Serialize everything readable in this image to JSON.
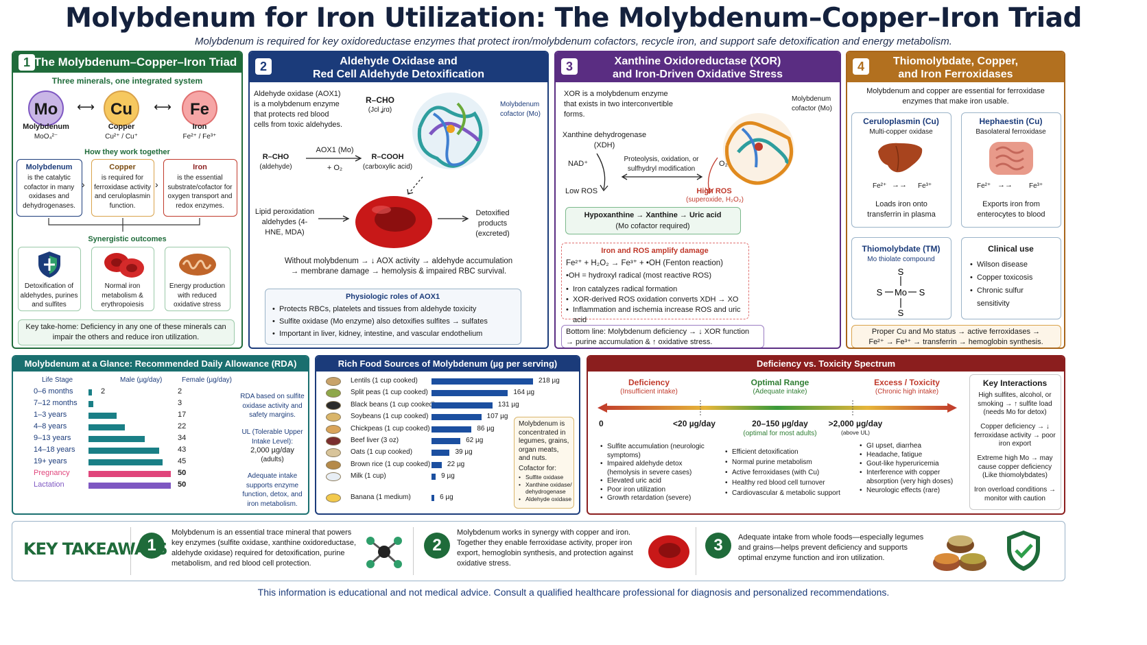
{
  "header": {
    "title": "Molybdenum for Iron Utilization: The Molybdenum–Copper–Iron Triad",
    "subtitle": "Molybdenum is required for key oxidoreductase enzymes that protect iron/molybdenum cofactors, recycle iron, and support safe detoxification and energy metabolism."
  },
  "panel1": {
    "number": "1",
    "title": "The Molybdenum–Copper–Iron Triad",
    "subtitle": "Three minerals, one integrated system",
    "elements": [
      {
        "symbol": "Mo",
        "name": "Molybdenum",
        "forms": "MoO₄²⁻",
        "color": "#c9b6e6"
      },
      {
        "symbol": "Cu",
        "name": "Copper",
        "forms": "Cu²⁺ / Cu⁺",
        "color": "#f6c85f"
      },
      {
        "symbol": "Fe",
        "name": "Iron",
        "forms": "Fe²⁺ / Fe³⁺",
        "color": "#f6a6a6"
      }
    ],
    "how_title": "How they work together",
    "roles": [
      {
        "title": "Molybdenum",
        "text": "is the catalytic cofactor in many oxidases and dehydrogenases."
      },
      {
        "title": "Copper",
        "text": "is required for ferroxidase activity and ceruloplasmin function."
      },
      {
        "title": "Iron",
        "text": "is the essential substrate/cofactor for oxygen transport and redox enzymes."
      }
    ],
    "outcomes_title": "Synergistic outcomes",
    "outcomes": [
      "Detoxification of aldehydes, purines and sulfites",
      "Normal iron metabolism & erythropoiesis",
      "Energy production with reduced oxidative stress"
    ],
    "takehome": "Key take-home: Deficiency in any one of these minerals can impair the others and reduce iron utilization."
  },
  "panel2": {
    "number": "2",
    "title_line1": "Aldehyde Oxidase and",
    "title_line2": "Red Cell Aldehyde Detoxification",
    "intro": "Aldehyde oxidase (AOX1) is a molybdenum enzyme that protects red blood cells from toxic aldehydes.",
    "rcho_top": "R–CHO",
    "rcho_top_sub": "(Jcł ʝɾɑ)",
    "cofactor": "Molybdenum cofactor (Mo)",
    "reaction_left": "R–CHO",
    "reaction_left_sub": "(aldehyde)",
    "reaction_enzyme": "AOX1 (Mo)",
    "reaction_o2": "+ O₂",
    "reaction_right": "R–COOH",
    "reaction_right_sub": "(carboxylic acid)",
    "lipid": "Lipid peroxidation aldehydes (4-HNE, MDA)",
    "detox": "Detoxified products (excreted)",
    "without_line1": "Without molybdenum → ↓ AOX activity → aldehyde accumulation",
    "without_line2": "→ membrane damage → hemolysis & impaired RBC survival.",
    "roles_title": "Physiologic roles of AOX1",
    "roles": [
      "Protects RBCs, platelets and tissues from aldehyde toxicity",
      "Sulfite oxidase (Mo enzyme) also detoxifies sulfites → sulfates",
      "Important in liver, kidney, intestine, and vascular endothelium"
    ]
  },
  "panel3": {
    "number": "3",
    "title_line1": "Xanthine Oxidoreductase (XOR)",
    "title_line2": "and Iron-Driven Oxidative Stress",
    "intro": "XOR is a molybdenum enzyme that exists in two interconvertible forms.",
    "cofactor": "Molybdenum cofactor (Mo)",
    "xdh": "Xanthine dehydrogenase (XDH)",
    "nad": "NAD⁺",
    "low_ros": "Low ROS",
    "conversion": "Proteolysis, oxidation, or sulfhydryl modification",
    "o2": "O₂",
    "high_ros": "High ROS",
    "high_ros_sub": "(superoxide, H₂O₂)",
    "purine": "Hypoxanthine → Xanthine → Uric acid",
    "purine_sub": "(Mo cofactor required)",
    "damage_title": "Iron and ROS amplify damage",
    "fenton": "Fe²⁺ + H₂O₂ → Fe³⁺ + •OH  (Fenton reaction)",
    "radical": "•OH = hydroxyl radical (most reactive ROS)",
    "damage_points": [
      "Iron catalyzes radical formation",
      "XOR-derived ROS oxidation converts XDH → XO",
      "Inflammation and ischemia increase ROS and uric acid"
    ],
    "bottom_line1": "Bottom line: Molybdenum deficiency → ↓ XOR function",
    "bottom_line2": "→ purine accumulation & ↑ oxidative stress."
  },
  "panel4": {
    "number": "4",
    "title_line1": "Thiomolybdate, Copper,",
    "title_line2": "and Iron Ferroxidases",
    "intro": "Molybdenum and copper are essential for ferroxidase enzymes that make iron usable.",
    "cerulo_title": "Ceruloplasmin (Cu)",
    "cerulo_sub": "Multi-copper oxidase",
    "cerulo_rxn_left": "Fe²⁺",
    "cerulo_rxn_right": "Fe³⁺",
    "cerulo_text": "Loads iron onto transferrin in plasma",
    "heph_title": "Hephaestin (Cu)",
    "heph_sub": "Basolateral ferroxidase",
    "heph_rxn_left": "Fe²⁺",
    "heph_rxn_right": "Fe³⁺",
    "heph_text": "Exports iron from enterocytes to blood",
    "tm_title": "Thiomolybdate (TM)",
    "tm_sub": "Mo thiolate compound",
    "tm_atoms": {
      "s": "S",
      "mo": "Mo"
    },
    "clinical_title": "Clinical use",
    "clinical": [
      "Wilson disease",
      "Copper toxicosis",
      "Chronic sulfur sensitivity"
    ],
    "bottom_line1": "Proper Cu and Mo status → active ferroxidases →",
    "bottom_line2": "Fe²⁺ → Fe³⁺ → transferrin → hemoglobin synthesis."
  },
  "rda": {
    "title": "Molybdenum at a Glance: Recommended Daily Allowance (RDA)",
    "col_stage": "Life Stage",
    "col_male": "Male (µg/day)",
    "col_female": "Female (µg/day)",
    "rows": [
      {
        "stage": "0–6 months",
        "male": 2,
        "female": 2,
        "male_label": "2",
        "color": "#1a7f86"
      },
      {
        "stage": "7–12 months",
        "male": 3,
        "female": 3,
        "male_label": "",
        "color": "#1a7f86"
      },
      {
        "stage": "1–3 years",
        "male": 17,
        "female": 17,
        "male_label": "",
        "color": "#1a7f86"
      },
      {
        "stage": "4–8 years",
        "male": 22,
        "female": 22,
        "male_label": "",
        "color": "#1a7f86"
      },
      {
        "stage": "9–13 years",
        "male": 34,
        "female": 34,
        "male_label": "",
        "color": "#1a7f86"
      },
      {
        "stage": "14–18 years",
        "male": 43,
        "female": 43,
        "male_label": "",
        "color": "#1a7f86"
      },
      {
        "stage": "19+ years",
        "male": 45,
        "female": 45,
        "male_label": "",
        "color": "#1a7f86"
      },
      {
        "stage": "Pregnancy",
        "male": 50,
        "female": 50,
        "male_label": "",
        "color": "#e0457b"
      },
      {
        "stage": "Lactation",
        "male": 50,
        "female": 50,
        "male_label": "",
        "color": "#7e57c2"
      }
    ],
    "scale_max": 50,
    "note1": "RDA based on sulfite oxidase activity and safety margins.",
    "note2_title": "UL (Tolerable Upper Intake Level):",
    "note2_value": "2,000 µg/day",
    "note2_sub": "(adults)",
    "note3": "Adequate intake supports enzyme function, detox, and iron metabolism."
  },
  "foods": {
    "title": "Rich Food Sources of Molybdenum (µg per serving)",
    "items": [
      {
        "name": "Lentils (1 cup cooked)",
        "value": 218,
        "label": "218 µg",
        "color": "#c8a26a"
      },
      {
        "name": "Split peas (1 cup cooked)",
        "value": 164,
        "label": "164 µg",
        "color": "#8fa84a"
      },
      {
        "name": "Black beans (1 cup cooked)",
        "value": 131,
        "label": "131 µg",
        "color": "#2b2b2b"
      },
      {
        "name": "Soybeans (1 cup cooked)",
        "value": 107,
        "label": "107 µg",
        "color": "#d9b56a"
      },
      {
        "name": "Chickpeas (1 cup cooked)",
        "value": 86,
        "label": "86 µg",
        "color": "#d9a45a"
      },
      {
        "name": "Beef liver (3 oz)",
        "value": 62,
        "label": "62 µg",
        "color": "#7a2e2e"
      },
      {
        "name": "Oats (1 cup cooked)",
        "value": 39,
        "label": "39 µg",
        "color": "#d8c49a"
      },
      {
        "name": "Brown rice (1 cup cooked)",
        "value": 22,
        "label": "22 µg",
        "color": "#b58a4a"
      },
      {
        "name": "Milk (1 cup)",
        "value": 9,
        "label": "9 µg",
        "color": "#e8eef5"
      },
      {
        "name": "Banana (1 medium)",
        "value": 6,
        "label": "6 µg",
        "color": "#f2c94c"
      }
    ],
    "scale_max": 218,
    "note": "Molybdenum is concentrated in legumes, grains, organ meats, and nuts.",
    "cofactor_title": "Cofactor for:",
    "cofactor_items": [
      "Sulfite oxidase",
      "Xanthine oxidase/ dehydrogenase",
      "Aldehyde oxidase"
    ]
  },
  "spectrum": {
    "title": "Deficiency vs. Toxicity Spectrum",
    "zones": [
      {
        "title": "Deficiency",
        "sub": "(Insufficient intake)",
        "color": "#c0392b"
      },
      {
        "title": "Optimal Range",
        "sub": "(Adequate intake)",
        "color": "#2e7d32"
      },
      {
        "title": "Excess / Toxicity",
        "sub": "(Chronic high intake)",
        "color": "#c0392b"
      }
    ],
    "ticks": [
      {
        "label": "0",
        "sub": ""
      },
      {
        "label": "<20 µg/day",
        "sub": ""
      },
      {
        "label": "20–150 µg/day",
        "sub": "(optimal for most adults)"
      },
      {
        "label": ">2,000 µg/day",
        "sub": "(above UL)"
      }
    ],
    "deficiency_points": [
      "Sulfite accumulation (neurologic symptoms)",
      "Impaired aldehyde detox (hemolysis in severe cases)",
      "Elevated uric acid",
      "Poor iron utilization",
      "Growth retardation (severe)"
    ],
    "optimal_points": [
      "Efficient detoxification",
      "Normal purine metabolism",
      "Active ferroxidases (with Cu)",
      "Healthy red blood cell turnover",
      "Cardiovascular & metabolic support"
    ],
    "excess_points": [
      "GI upset, diarrhea",
      "Headache, fatigue",
      "Gout-like hyperuricemia",
      "Interference with copper absorption (very high doses)",
      "Neurologic effects (rare)"
    ],
    "interactions_title": "Key Interactions",
    "interactions": [
      "High sulfites, alcohol, or smoking → ↑ sulfite load (needs Mo for detox)",
      "Copper deficiency → ↓ ferroxidase activity → poor iron export",
      "Extreme high Mo → may cause copper deficiency (Like thiomolybdates)",
      "Iron overload conditions → monitor with caution"
    ]
  },
  "takeaways": {
    "title": "KEY TAKEAWAYS",
    "items": [
      {
        "num": "1",
        "text": "Molybdenum is an essential trace mineral that powers key enzymes (sulfite oxidase, xanthine oxidoreductase, aldehyde oxidase) required for detoxification, purine metabolism, and red blood cell protection."
      },
      {
        "num": "2",
        "text": "Molybdenum works in synergy with copper and iron. Together they enable ferroxidase activity, proper iron export, hemoglobin synthesis, and protection against oxidative stress."
      },
      {
        "num": "3",
        "text": "Adequate intake from whole foods—especially legumes and grains—helps prevent deficiency and supports optimal enzyme function and iron utilization."
      }
    ]
  },
  "footer": "This information is educational and not medical advice. Consult a qualified healthcare professional for diagnosis and personalized recommendations."
}
